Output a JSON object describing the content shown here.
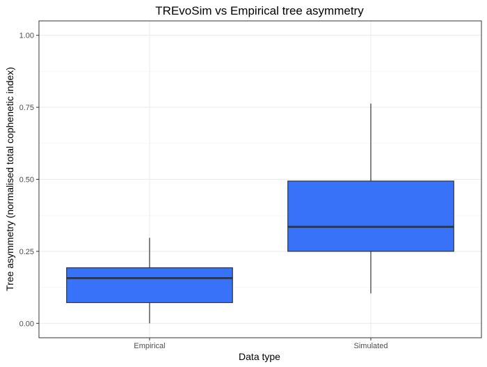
{
  "chart_data": {
    "type": "box",
    "title": "TREvoSim vs Empirical tree asymmetry",
    "xlabel": "Data type",
    "ylabel": "Tree asymmetry (normalised total cophenetic index)",
    "categories": [
      "Empirical",
      "Simulated"
    ],
    "ylim": [
      -0.05,
      1.05
    ],
    "yticks": [
      0.0,
      0.25,
      0.5,
      0.75,
      1.0
    ],
    "ytick_labels": [
      "0.00",
      "0.25",
      "0.50",
      "0.75",
      "1.00"
    ],
    "grid": true,
    "boxes": [
      {
        "category": "Empirical",
        "whisker_low": 0.0,
        "q1": 0.072,
        "median": 0.157,
        "q3": 0.193,
        "whisker_high": 0.297
      },
      {
        "category": "Simulated",
        "whisker_low": 0.104,
        "q1": 0.25,
        "median": 0.335,
        "q3": 0.494,
        "whisker_high": 0.763
      }
    ],
    "fill_color": "#3872f9",
    "line_color": "#333333"
  }
}
